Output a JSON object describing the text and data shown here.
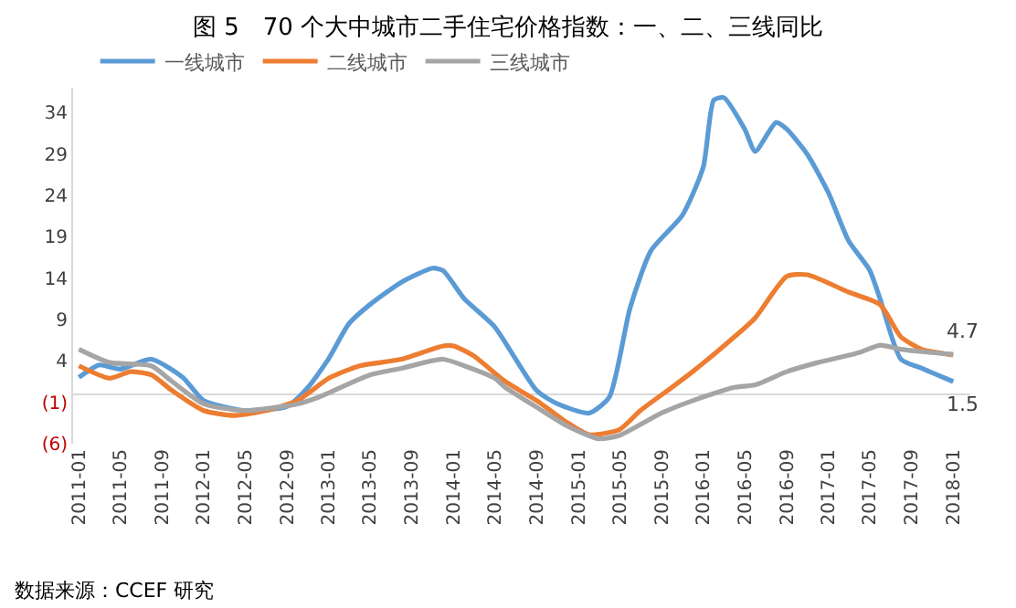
{
  "chart_data": {
    "type": "line",
    "title": "图 5　70 个大中城市二手住宅价格指数：一、二、三线同比",
    "series": [
      {
        "name": "一线城市",
        "color": "#5b9bd5",
        "x": [
          "2011-01",
          "2011-03",
          "2011-05",
          "2011-08",
          "2011-11",
          "2012-01",
          "2012-05",
          "2012-09",
          "2012-11",
          "2013-01",
          "2013-03",
          "2013-05",
          "2013-08",
          "2013-11",
          "2013-12",
          "2014-02",
          "2014-05",
          "2014-09",
          "2014-11",
          "2015-02",
          "2015-04",
          "2015-06",
          "2015-08",
          "2015-11",
          "2016-01",
          "2016-02",
          "2016-03",
          "2016-05",
          "2016-06",
          "2016-08",
          "2016-09",
          "2016-11",
          "2017-01",
          "2017-03",
          "2017-05",
          "2017-06",
          "2017-08",
          "2017-10",
          "2018-01"
        ],
        "values": [
          2,
          3.5,
          3,
          4.2,
          2,
          -0.8,
          -2,
          -1.5,
          0.8,
          4.3,
          8.5,
          10.8,
          13.5,
          15.2,
          14.9,
          11.5,
          8.1,
          0.4,
          -1.2,
          -2.3,
          -0.4,
          10.4,
          17.3,
          21.6,
          27.4,
          35.5,
          35.8,
          32,
          29.3,
          32.8,
          32,
          28.9,
          24.3,
          18.5,
          15,
          11.5,
          4.2,
          3.1,
          1.5
        ]
      },
      {
        "name": "二线城市",
        "color": "#ed7d31",
        "x": [
          "2011-01",
          "2011-04",
          "2011-06",
          "2011-08",
          "2011-10",
          "2012-01",
          "2012-04",
          "2012-07",
          "2012-10",
          "2013-01",
          "2013-04",
          "2013-08",
          "2013-12",
          "2014-01",
          "2014-03",
          "2014-06",
          "2014-09",
          "2014-12",
          "2015-02",
          "2015-05",
          "2015-07",
          "2015-10",
          "2015-12",
          "2016-04",
          "2016-06",
          "2016-09",
          "2016-11",
          "2017-03",
          "2017-06",
          "2017-08",
          "2017-10",
          "2018-01"
        ],
        "values": [
          3.4,
          1.9,
          2.7,
          2.3,
          0.4,
          -2,
          -2.6,
          -2,
          -0.8,
          1.9,
          3.4,
          4.2,
          5.8,
          5.8,
          4.6,
          1.5,
          -0.8,
          -3.5,
          -4.9,
          -4.3,
          -2,
          0.8,
          2.7,
          6.9,
          9.2,
          14.2,
          14.4,
          12.3,
          10.8,
          6.9,
          5.4,
          4.7
        ]
      },
      {
        "name": "三线城市",
        "color": "#a5a5a5",
        "x": [
          "2011-01",
          "2011-04",
          "2011-08",
          "2011-10",
          "2012-01",
          "2012-05",
          "2012-10",
          "2012-12",
          "2013-05",
          "2013-08",
          "2013-12",
          "2014-02",
          "2014-05",
          "2014-06",
          "2014-09",
          "2014-12",
          "2015-03",
          "2015-05",
          "2015-09",
          "2015-12",
          "2016-04",
          "2016-06",
          "2016-09",
          "2016-12",
          "2017-04",
          "2017-06",
          "2017-08",
          "2017-11",
          "2018-01"
        ],
        "values": [
          5.4,
          3.8,
          3.4,
          1.5,
          -1.2,
          -2,
          -1.2,
          -0.4,
          2.3,
          3.1,
          4.2,
          3.4,
          1.9,
          0.8,
          -1.6,
          -3.9,
          -5.4,
          -5,
          -2.3,
          -0.8,
          0.8,
          1.1,
          2.7,
          3.8,
          5,
          5.9,
          5.4,
          5,
          4.8
        ]
      }
    ],
    "xlim": [
      "2010-12-15",
      "2018-02-20"
    ],
    "xticks": [
      "2011-01",
      "2011-05",
      "2011-09",
      "2012-01",
      "2012-05",
      "2012-09",
      "2013-01",
      "2013-05",
      "2013-09",
      "2014-01",
      "2014-05",
      "2014-09",
      "2015-01",
      "2015-05",
      "2015-09",
      "2016-01",
      "2016-05",
      "2016-09",
      "2017-01",
      "2017-05",
      "2017-09",
      "2018-01"
    ],
    "ylim": [
      -6,
      37
    ],
    "yticks": [
      {
        "value": -6,
        "label": "(6)"
      },
      {
        "value": -1,
        "label": "(1)"
      },
      4,
      9,
      14,
      19,
      24,
      29,
      34
    ],
    "grid": false,
    "legend": "top left",
    "marker": "none",
    "line_style": "solid",
    "annotations": [
      {
        "text": "4.7",
        "x": "2018-01",
        "y": 4.7
      },
      {
        "text": "1.5",
        "x": "2018-01",
        "y": 1.5
      },
      "数据来源：CCEF 研究"
    ]
  }
}
